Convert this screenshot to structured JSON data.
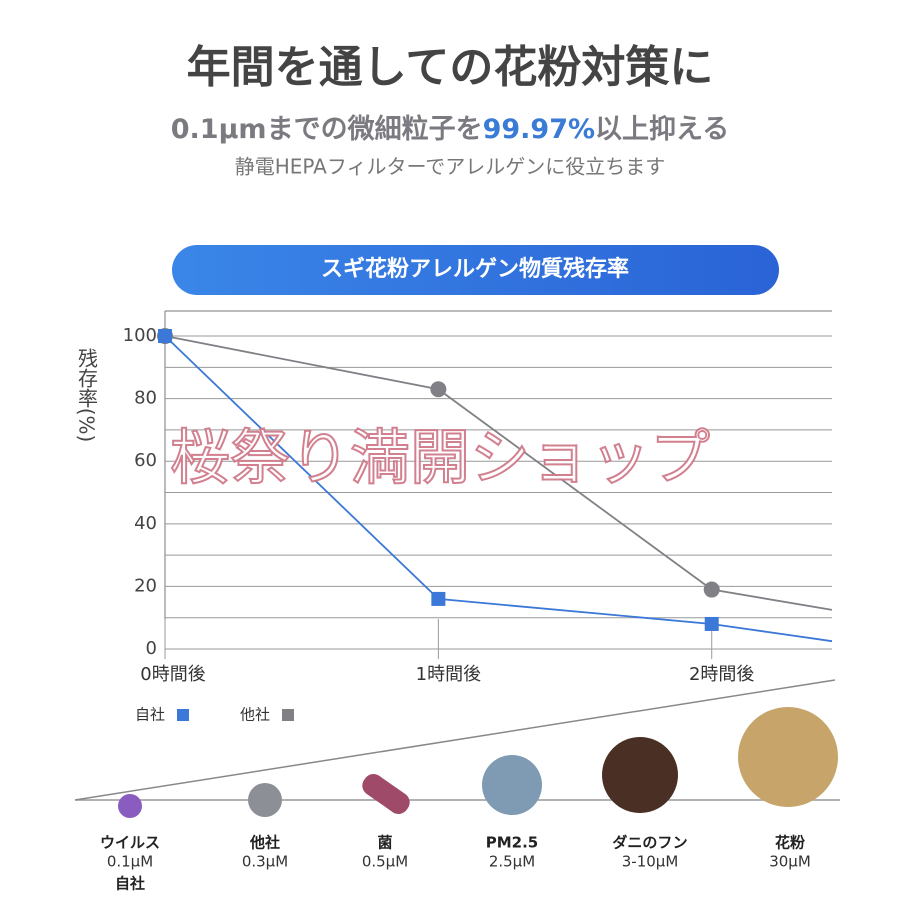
{
  "header": {
    "title": "年間を通しての花粉対策に",
    "subtitle_before": "0.1μmまでの微細粒子を",
    "subtitle_highlight": "99.97%",
    "subtitle_after": "以上抑える",
    "note": "静電HEPAフィルターでアレルゲンに役立ちます"
  },
  "chart_data": {
    "type": "line",
    "title": "スギ花粉アレルゲン物質残存率",
    "y_label": "残存率(%)",
    "x": [
      0,
      1,
      2,
      2.44
    ],
    "xlim": [
      0,
      2.44
    ],
    "xticks": [
      {
        "value": 0,
        "label": "0時間後"
      },
      {
        "value": 1,
        "label": "1時間後"
      },
      {
        "value": 2,
        "label": "2時間後"
      }
    ],
    "ylim": [
      0,
      108
    ],
    "yticks": [
      0,
      20,
      40,
      60,
      80,
      100
    ],
    "minor_yticks": [
      10,
      30,
      50,
      70,
      90
    ],
    "grid": true,
    "series": [
      {
        "name": "自社",
        "color": "#3b78d8",
        "marker": "square",
        "values": [
          100,
          16,
          8,
          2.5
        ]
      },
      {
        "name": "他社",
        "color": "#808086",
        "marker": "circle",
        "values": [
          100,
          83,
          19,
          12.5
        ]
      }
    ],
    "legend": "bottom-left"
  },
  "watermark": "桜祭り満開ショップ",
  "particles": [
    {
      "name": "ウイルス",
      "size": "0.1μM",
      "note": "自社"
    },
    {
      "name": "他社",
      "size": "0.3μM"
    },
    {
      "name": "菌",
      "size": "0.5μM"
    },
    {
      "name": "PM2.5",
      "size": "2.5μM"
    },
    {
      "name": "ダニのフン",
      "size": "3-10μM"
    },
    {
      "name": "花粉",
      "size": "30μM"
    }
  ]
}
